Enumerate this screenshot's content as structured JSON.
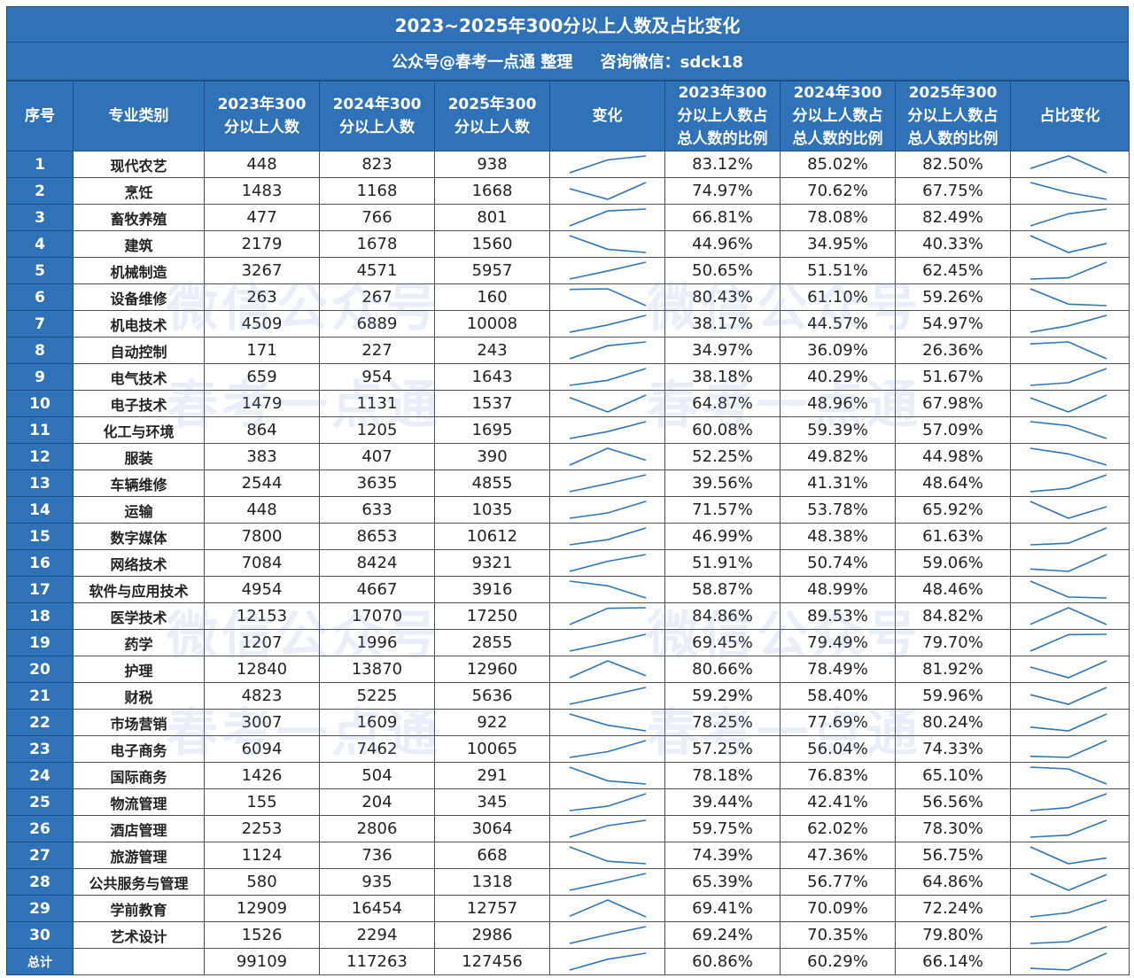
{
  "title": "2023~2025年300分以上人数及占比变化",
  "subtitle": "公众号@春考一点通 整理     咨询微信：sdck18",
  "watermark": {
    "line1": "微信公众号",
    "line2": "春考一点通"
  },
  "colors": {
    "header_bg": "#2f72b8",
    "sparkline": "#2e75b6"
  },
  "headers": {
    "idx": "序号",
    "major": "专业类别",
    "c2023": "2023年300分以上人数",
    "c2024": "2024年300分以上人数",
    "c2025": "2025年300分以上人数",
    "change": "变化",
    "r2023": "2023年300分以上人数占总人数的比例",
    "r2024": "2024年300分以上人数占总人数的比例",
    "r2025": "2025年300分以上人数占总人数的比例",
    "ratio_change": "占比变化"
  },
  "rows": [
    {
      "idx": "1",
      "name": "现代农艺",
      "c2023": "448",
      "c2024": "823",
      "c2025": "938",
      "r2023": "83.12%",
      "r2024": "85.02%",
      "r2025": "82.50%"
    },
    {
      "idx": "2",
      "name": "烹饪",
      "c2023": "1483",
      "c2024": "1168",
      "c2025": "1668",
      "r2023": "74.97%",
      "r2024": "70.62%",
      "r2025": "67.75%"
    },
    {
      "idx": "3",
      "name": "畜牧养殖",
      "c2023": "477",
      "c2024": "766",
      "c2025": "801",
      "r2023": "66.81%",
      "r2024": "78.08%",
      "r2025": "82.49%"
    },
    {
      "idx": "4",
      "name": "建筑",
      "c2023": "2179",
      "c2024": "1678",
      "c2025": "1560",
      "r2023": "44.96%",
      "r2024": "34.95%",
      "r2025": "40.33%"
    },
    {
      "idx": "5",
      "name": "机械制造",
      "c2023": "3267",
      "c2024": "4571",
      "c2025": "5957",
      "r2023": "50.65%",
      "r2024": "51.51%",
      "r2025": "62.45%"
    },
    {
      "idx": "6",
      "name": "设备维修",
      "c2023": "263",
      "c2024": "267",
      "c2025": "160",
      "r2023": "80.43%",
      "r2024": "61.10%",
      "r2025": "59.26%"
    },
    {
      "idx": "7",
      "name": "机电技术",
      "c2023": "4509",
      "c2024": "6889",
      "c2025": "10008",
      "r2023": "38.17%",
      "r2024": "44.57%",
      "r2025": "54.97%"
    },
    {
      "idx": "8",
      "name": "自动控制",
      "c2023": "171",
      "c2024": "227",
      "c2025": "243",
      "r2023": "34.97%",
      "r2024": "36.09%",
      "r2025": "26.36%"
    },
    {
      "idx": "9",
      "name": "电气技术",
      "c2023": "659",
      "c2024": "954",
      "c2025": "1643",
      "r2023": "38.18%",
      "r2024": "40.29%",
      "r2025": "51.67%"
    },
    {
      "idx": "10",
      "name": "电子技术",
      "c2023": "1479",
      "c2024": "1131",
      "c2025": "1537",
      "r2023": "64.87%",
      "r2024": "48.96%",
      "r2025": "67.98%"
    },
    {
      "idx": "11",
      "name": "化工与环境",
      "c2023": "864",
      "c2024": "1205",
      "c2025": "1695",
      "r2023": "60.08%",
      "r2024": "59.39%",
      "r2025": "57.09%"
    },
    {
      "idx": "12",
      "name": "服装",
      "c2023": "383",
      "c2024": "407",
      "c2025": "390",
      "r2023": "52.25%",
      "r2024": "49.82%",
      "r2025": "44.98%"
    },
    {
      "idx": "13",
      "name": "车辆维修",
      "c2023": "2544",
      "c2024": "3635",
      "c2025": "4855",
      "r2023": "39.56%",
      "r2024": "41.31%",
      "r2025": "48.64%"
    },
    {
      "idx": "14",
      "name": "运输",
      "c2023": "448",
      "c2024": "633",
      "c2025": "1035",
      "r2023": "71.57%",
      "r2024": "53.78%",
      "r2025": "65.92%"
    },
    {
      "idx": "15",
      "name": "数字媒体",
      "c2023": "7800",
      "c2024": "8653",
      "c2025": "10612",
      "r2023": "46.99%",
      "r2024": "48.38%",
      "r2025": "61.63%"
    },
    {
      "idx": "16",
      "name": "网络技术",
      "c2023": "7084",
      "c2024": "8424",
      "c2025": "9321",
      "r2023": "51.91%",
      "r2024": "50.74%",
      "r2025": "59.06%"
    },
    {
      "idx": "17",
      "name": "软件与应用技术",
      "c2023": "4954",
      "c2024": "4667",
      "c2025": "3916",
      "r2023": "58.87%",
      "r2024": "48.99%",
      "r2025": "48.46%"
    },
    {
      "idx": "18",
      "name": "医学技术",
      "c2023": "12153",
      "c2024": "17070",
      "c2025": "17250",
      "r2023": "84.86%",
      "r2024": "89.53%",
      "r2025": "84.82%"
    },
    {
      "idx": "19",
      "name": "药学",
      "c2023": "1207",
      "c2024": "1996",
      "c2025": "2855",
      "r2023": "69.45%",
      "r2024": "79.49%",
      "r2025": "79.70%"
    },
    {
      "idx": "20",
      "name": "护理",
      "c2023": "12840",
      "c2024": "13870",
      "c2025": "12960",
      "r2023": "80.66%",
      "r2024": "78.49%",
      "r2025": "81.92%"
    },
    {
      "idx": "21",
      "name": "财税",
      "c2023": "4823",
      "c2024": "5225",
      "c2025": "5636",
      "r2023": "59.29%",
      "r2024": "58.40%",
      "r2025": "59.96%"
    },
    {
      "idx": "22",
      "name": "市场营销",
      "c2023": "3007",
      "c2024": "1609",
      "c2025": "922",
      "r2023": "78.25%",
      "r2024": "77.69%",
      "r2025": "80.24%"
    },
    {
      "idx": "23",
      "name": "电子商务",
      "c2023": "6094",
      "c2024": "7462",
      "c2025": "10065",
      "r2023": "57.25%",
      "r2024": "56.04%",
      "r2025": "74.33%"
    },
    {
      "idx": "24",
      "name": "国际商务",
      "c2023": "1426",
      "c2024": "504",
      "c2025": "291",
      "r2023": "78.18%",
      "r2024": "76.83%",
      "r2025": "65.10%"
    },
    {
      "idx": "25",
      "name": "物流管理",
      "c2023": "155",
      "c2024": "204",
      "c2025": "345",
      "r2023": "39.44%",
      "r2024": "42.41%",
      "r2025": "56.56%"
    },
    {
      "idx": "26",
      "name": "酒店管理",
      "c2023": "2253",
      "c2024": "2806",
      "c2025": "3064",
      "r2023": "59.75%",
      "r2024": "62.02%",
      "r2025": "78.30%"
    },
    {
      "idx": "27",
      "name": "旅游管理",
      "c2023": "1124",
      "c2024": "736",
      "c2025": "668",
      "r2023": "74.39%",
      "r2024": "47.36%",
      "r2025": "56.75%"
    },
    {
      "idx": "28",
      "name": "公共服务与管理",
      "c2023": "580",
      "c2024": "935",
      "c2025": "1318",
      "r2023": "65.39%",
      "r2024": "56.77%",
      "r2025": "64.86%"
    },
    {
      "idx": "29",
      "name": "学前教育",
      "c2023": "12909",
      "c2024": "16454",
      "c2025": "12757",
      "r2023": "69.41%",
      "r2024": "70.09%",
      "r2025": "72.24%"
    },
    {
      "idx": "30",
      "name": "艺术设计",
      "c2023": "1526",
      "c2024": "2294",
      "c2025": "2986",
      "r2023": "69.24%",
      "r2024": "70.35%",
      "r2025": "79.80%"
    }
  ],
  "total": {
    "idx": "总计",
    "name": "",
    "c2023": "99109",
    "c2024": "117263",
    "c2025": "127456",
    "r2023": "60.86%",
    "r2024": "60.29%",
    "r2025": "66.14%"
  }
}
